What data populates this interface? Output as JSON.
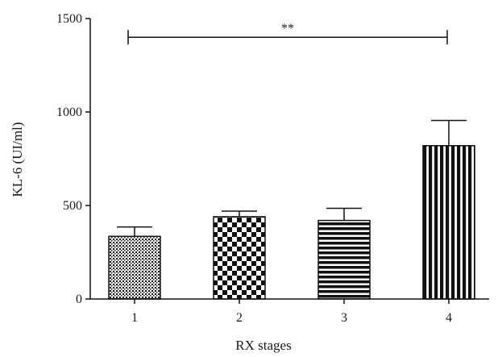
{
  "chart_data": {
    "type": "bar",
    "categories": [
      "1",
      "2",
      "3",
      "4"
    ],
    "values": [
      335,
      440,
      420,
      820
    ],
    "errors": [
      50,
      30,
      65,
      135
    ],
    "patterns": [
      "dots",
      "checker",
      "hstripes",
      "vstripes"
    ],
    "xlabel": "RX stages",
    "ylabel": "KL-6 (UI/ml)",
    "ylim": [
      0,
      1500
    ],
    "yticks": [
      0,
      500,
      1000,
      1500
    ],
    "grid": false,
    "significance": {
      "from": "1",
      "to": "4",
      "label": "**",
      "y": 1400
    }
  },
  "colors": {
    "bar": "#111111",
    "axis": "#111111",
    "background": "#ffffff"
  }
}
